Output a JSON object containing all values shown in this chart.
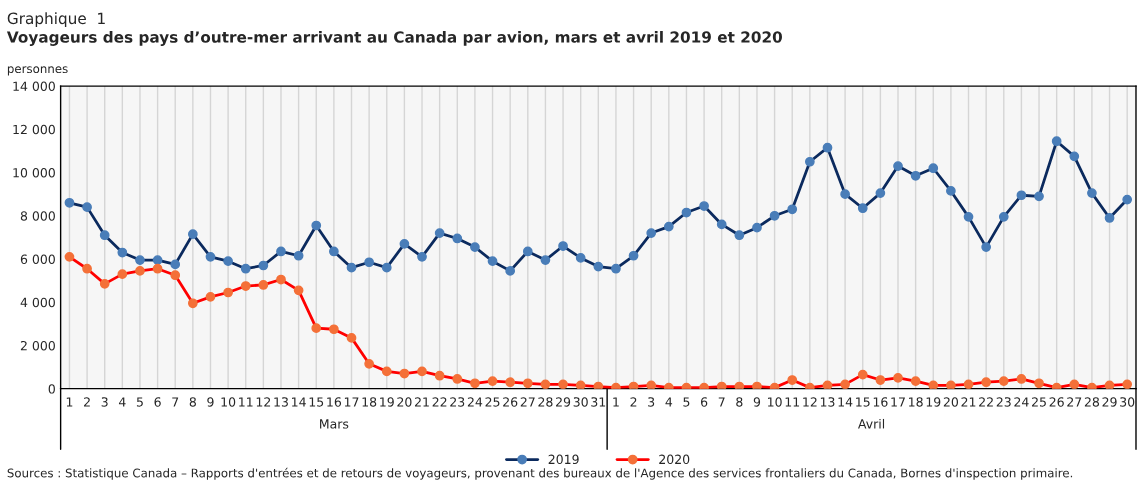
{
  "chart_data": {
    "type": "line",
    "title": "Graphique  1",
    "subtitle": "Voyageurs des pays d’outre-mer arrivant au Canada par avion, mars et avril 2019 et 2020",
    "ylabel": "personnes",
    "categories": [
      "1",
      "2",
      "3",
      "4",
      "5",
      "6",
      "7",
      "8",
      "9",
      "10",
      "11",
      "12",
      "13",
      "14",
      "15",
      "16",
      "17",
      "18",
      "19",
      "20",
      "21",
      "22",
      "23",
      "24",
      "25",
      "26",
      "27",
      "28",
      "29",
      "30",
      "31",
      "1",
      "2",
      "3",
      "4",
      "5",
      "6",
      "7",
      "8",
      "9",
      "10",
      "11",
      "12",
      "13",
      "14",
      "15",
      "16",
      "17",
      "18",
      "19",
      "20",
      "21",
      "22",
      "23",
      "24",
      "25",
      "26",
      "27",
      "28",
      "29",
      "30"
    ],
    "series": [
      {
        "name": "2019",
        "color": "#0b2a5e",
        "values": [
          8600,
          8400,
          7100,
          6300,
          5950,
          5950,
          5750,
          7150,
          6100,
          5900,
          5550,
          5700,
          6350,
          6150,
          7550,
          6350,
          5600,
          5850,
          5600,
          6700,
          6100,
          7200,
          6950,
          6550,
          5900,
          5450,
          6350,
          5950,
          6600,
          6050,
          5650,
          5550,
          6150,
          7200,
          7500,
          8150,
          8450,
          7600,
          7100,
          7450,
          8000,
          8300,
          10500,
          11150,
          9000,
          8350,
          9050,
          10300,
          9850,
          10200,
          9150,
          7950,
          6550,
          7950,
          8950,
          8900,
          11450,
          10750,
          9050,
          7900,
          8750
        ]
      },
      {
        "name": "2020",
        "color": "#ff0000",
        "values": [
          6100,
          5550,
          4850,
          5300,
          5450,
          5550,
          5250,
          3950,
          4250,
          4450,
          4750,
          4800,
          5050,
          4550,
          2800,
          2750,
          2350,
          1150,
          800,
          700,
          800,
          600,
          450,
          250,
          350,
          300,
          250,
          200,
          200,
          150,
          100,
          50,
          100,
          150,
          50,
          50,
          50,
          100,
          100,
          100,
          50,
          400,
          50,
          150,
          200,
          650,
          400,
          500,
          350,
          150,
          150,
          200,
          300,
          350,
          450,
          250,
          50,
          200,
          50,
          150,
          200
        ]
      }
    ],
    "ylim": [
      0,
      14000
    ],
    "yticks": [
      0,
      {
        "value": 2000,
        "label": "2 000"
      },
      {
        "value": 4000,
        "label": "4 000"
      },
      {
        "value": 6000,
        "label": "6 000"
      },
      {
        "value": 8000,
        "label": "8 000"
      },
      {
        "value": 10000,
        "label": "10 000"
      },
      {
        "value": 12000,
        "label": "12 000"
      },
      {
        "value": 14000,
        "label": "14 000"
      }
    ],
    "grid": "x",
    "legend": "bottom",
    "marker": "circle",
    "line_style": "solid",
    "annotations": [
      "Mars",
      "Avril",
      "Sources : Statistique Canada – Rapports d'entrées et de retours de voyageurs, provenant des bureaux de l'Agence des services frontaliers du Canada, Bornes d'inspection primaire."
    ]
  }
}
